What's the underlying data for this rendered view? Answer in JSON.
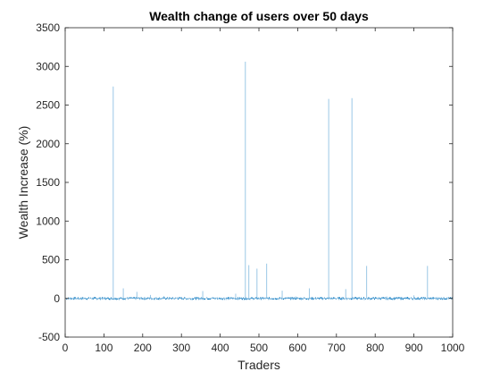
{
  "chart_data": {
    "type": "bar",
    "title": "Wealth change of users over 50 days",
    "xlabel": "Traders",
    "ylabel": "Wealth Increase (%)",
    "xlim": [
      0,
      1000
    ],
    "ylim": [
      -500,
      3500
    ],
    "xticks": [
      0,
      100,
      200,
      300,
      400,
      500,
      600,
      700,
      800,
      900,
      1000
    ],
    "yticks": [
      -500,
      0,
      500,
      1000,
      1500,
      2000,
      2500,
      3000,
      3500
    ],
    "grid": false,
    "legend": "none",
    "colors": {
      "bar": "#0072bd",
      "axis": "#262626",
      "background": "#ffffff"
    },
    "spikes": [
      {
        "x": 15,
        "y": 12
      },
      {
        "x": 72,
        "y": 14
      },
      {
        "x": 95,
        "y": 10
      },
      {
        "x": 124,
        "y": 2740
      },
      {
        "x": 150,
        "y": 130
      },
      {
        "x": 185,
        "y": 85
      },
      {
        "x": 220,
        "y": 45
      },
      {
        "x": 255,
        "y": 30
      },
      {
        "x": 290,
        "y": 18
      },
      {
        "x": 355,
        "y": 95
      },
      {
        "x": 410,
        "y": 15
      },
      {
        "x": 440,
        "y": 60
      },
      {
        "x": 465,
        "y": 3060
      },
      {
        "x": 474,
        "y": 430
      },
      {
        "x": 495,
        "y": 385
      },
      {
        "x": 520,
        "y": 450
      },
      {
        "x": 560,
        "y": 100
      },
      {
        "x": 595,
        "y": 25
      },
      {
        "x": 630,
        "y": 130
      },
      {
        "x": 680,
        "y": 2580
      },
      {
        "x": 715,
        "y": 20
      },
      {
        "x": 724,
        "y": 120
      },
      {
        "x": 740,
        "y": 2590
      },
      {
        "x": 778,
        "y": 420
      },
      {
        "x": 830,
        "y": 25
      },
      {
        "x": 870,
        "y": 15
      },
      {
        "x": 900,
        "y": 40
      },
      {
        "x": 935,
        "y": 420
      },
      {
        "x": 970,
        "y": 15
      }
    ],
    "baseline_noise": {
      "count": 1000,
      "min": -20,
      "max": 20
    }
  }
}
